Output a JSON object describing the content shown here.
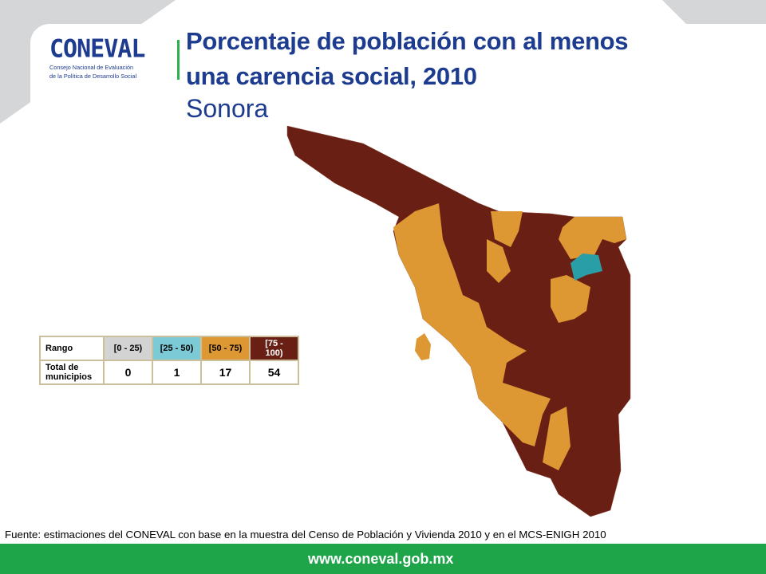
{
  "header": {
    "logo_text": "CONEVAL",
    "logo_subtitle_line1": "Consejo Nacional de Evaluación",
    "logo_subtitle_line2": "de la Política de Desarrollo Social",
    "title_line1": "Porcentaje de población con al menos",
    "title_line2": "una carencia social, 2010",
    "subtitle": "Sonora"
  },
  "legend": {
    "row_label_range": "Rango",
    "row_label_total": "Total de municipios",
    "ranges": [
      {
        "label": "[0 - 25)",
        "color": "#d3d3d3",
        "count": "0"
      },
      {
        "label": "[25 - 50)",
        "color": "#7ccad6",
        "count": "1"
      },
      {
        "label": "[50 - 75)",
        "color": "#dd9834",
        "count": "17"
      },
      {
        "label": "[75 - 100)",
        "color": "#6a1f14",
        "count": "54"
      }
    ]
  },
  "source": "Fuente: estimaciones del CONEVAL con base en la muestra del Censo de Población y Vivienda 2010 y en el MCS-ENIGH 2010",
  "footer": {
    "url": "www.coneval.gob.mx"
  }
}
